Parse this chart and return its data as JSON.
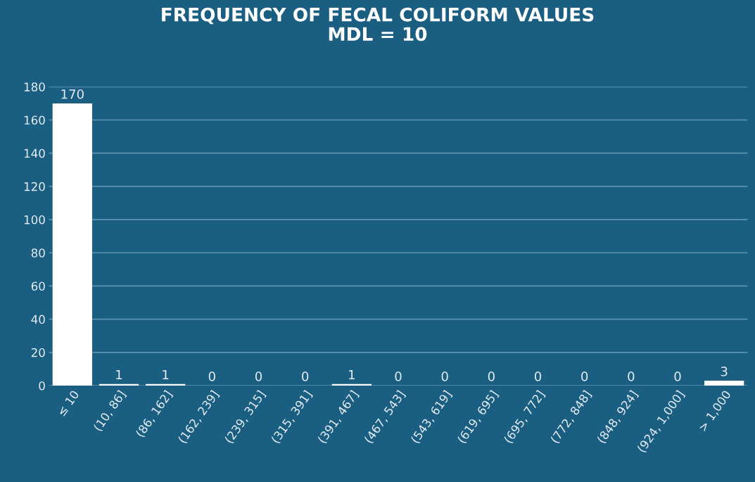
{
  "chart_data": {
    "type": "bar",
    "title": "FREQUENCY OF FECAL COLIFORM VALUES\nMDL = 10",
    "categories": [
      "≤ 10",
      "(10, 86]",
      "(86, 162]",
      "(162, 239]",
      "(239, 315]",
      "(315, 391]",
      "(391, 467]",
      "(467, 543]",
      "(543, 619]",
      "(619, 695]",
      "(695, 772]",
      "(772, 848]",
      "(848, 924]",
      "(924, 1,000]",
      "> 1,000"
    ],
    "values": [
      170,
      1,
      1,
      0,
      0,
      0,
      1,
      0,
      0,
      0,
      0,
      0,
      0,
      0,
      3
    ],
    "color": "#ffffff",
    "ylim": [
      0,
      180
    ],
    "yticks": [
      0,
      20,
      40,
      60,
      80,
      100,
      120,
      140,
      160,
      180
    ],
    "grid": "y",
    "data_labels": true
  }
}
